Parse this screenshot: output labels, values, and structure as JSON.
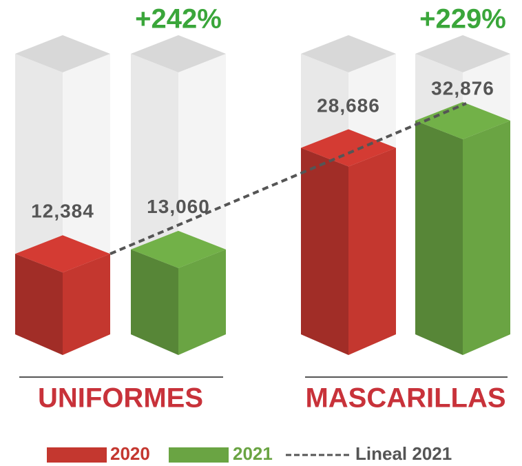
{
  "chart_data": {
    "type": "bar3d",
    "categories": [
      "UNIFORMES",
      "MASCARILLAS"
    ],
    "annotations": [
      "+242%",
      "+229%"
    ],
    "series": [
      {
        "name": "2020",
        "color": "#c4372f",
        "values": [
          12384,
          28686
        ],
        "value_labels": [
          "12,384",
          "28,686"
        ]
      },
      {
        "name": "2021",
        "color": "#6aa443",
        "values": [
          13060,
          32876
        ],
        "value_labels": [
          "13,060",
          "32,876"
        ]
      }
    ],
    "trendline": {
      "name": "Lineal 2021",
      "color": "#555555"
    }
  }
}
